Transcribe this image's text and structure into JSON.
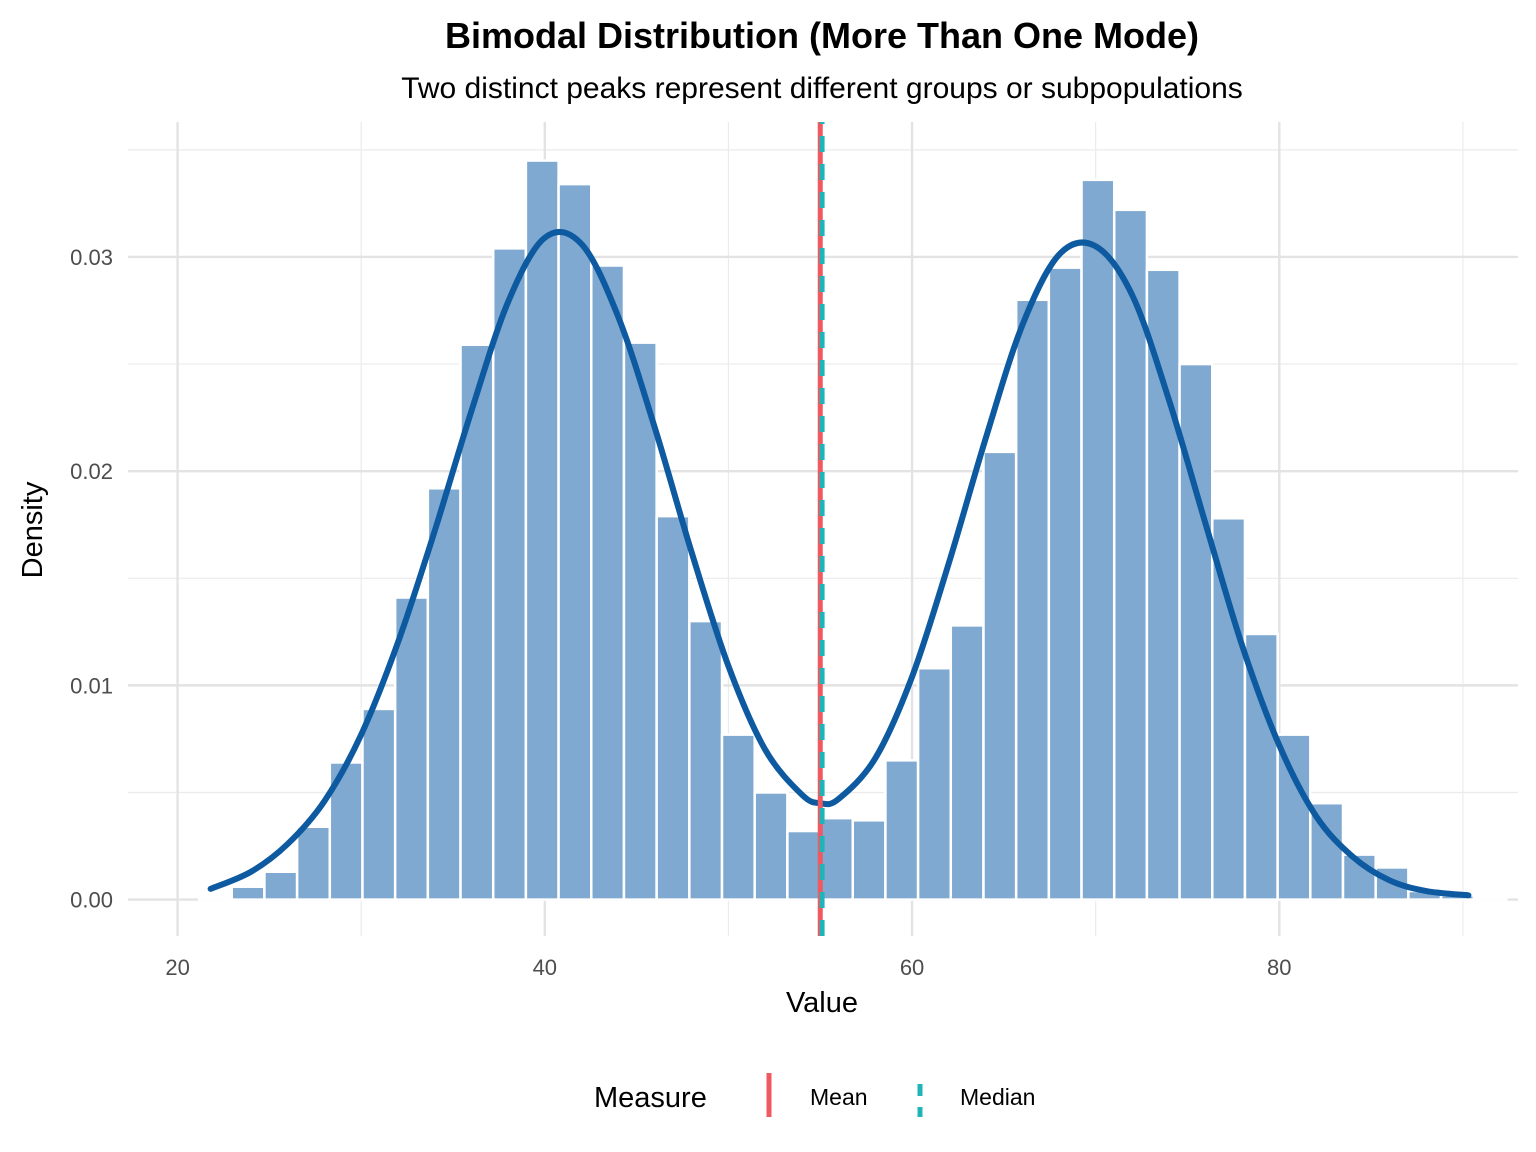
{
  "chart_data": {
    "type": "bar",
    "title": "Bimodal Distribution (More Than One Mode)",
    "subtitle": "Two distinct peaks represent different groups or subpopulations",
    "xlabel": "Value",
    "ylabel": "Density",
    "xlim": [
      17.3,
      93.0
    ],
    "ylim": [
      -0.0017,
      0.0363
    ],
    "x_ticks": [
      20,
      40,
      60,
      80
    ],
    "x_tick_labels": [
      "20",
      "40",
      "60",
      "80"
    ],
    "y_ticks": [
      0.0,
      0.01,
      0.02,
      0.03
    ],
    "y_tick_labels": [
      "0.00",
      "0.01",
      "0.02",
      "0.03"
    ],
    "grid": true,
    "bin_width": 1.78,
    "histogram": {
      "name": "Histogram",
      "color": "#7fa9d0",
      "bin_centers": [
        22.06,
        23.84,
        25.62,
        27.4,
        29.18,
        30.96,
        32.74,
        34.52,
        36.3,
        38.08,
        39.86,
        41.64,
        43.42,
        45.2,
        46.98,
        48.76,
        50.54,
        52.32,
        54.1,
        55.88,
        57.66,
        59.44,
        61.22,
        63.0,
        64.78,
        66.56,
        68.34,
        70.12,
        71.9,
        73.68,
        75.46,
        77.24,
        79.02,
        80.8,
        82.58,
        84.36,
        86.14,
        87.92,
        89.7,
        91.48
      ],
      "densities": [
        0.0001,
        0.0006,
        0.0013,
        0.0034,
        0.0064,
        0.0089,
        0.0141,
        0.0192,
        0.0259,
        0.0304,
        0.0345,
        0.0334,
        0.0296,
        0.026,
        0.0179,
        0.013,
        0.0077,
        0.005,
        0.0032,
        0.0038,
        0.0037,
        0.0065,
        0.0108,
        0.0128,
        0.0209,
        0.028,
        0.0295,
        0.0336,
        0.0322,
        0.0294,
        0.025,
        0.0178,
        0.0124,
        0.0077,
        0.0045,
        0.0021,
        0.0015,
        0.0004,
        0.0002,
        0.0001
      ]
    },
    "density_curve": {
      "name": "Density",
      "color": "#0e5aa0",
      "x": [
        21.8,
        24,
        26,
        28,
        30,
        32,
        34,
        36,
        38,
        40,
        42,
        44,
        46,
        48,
        50,
        52,
        54,
        55,
        56,
        58,
        60,
        62,
        64,
        66,
        68,
        70,
        72,
        74,
        76,
        78,
        80,
        82,
        84,
        86,
        88,
        90.3
      ],
      "y": [
        0.0005,
        0.0013,
        0.0026,
        0.0046,
        0.0077,
        0.012,
        0.0172,
        0.0228,
        0.0279,
        0.0309,
        0.0306,
        0.0272,
        0.022,
        0.0162,
        0.0109,
        0.007,
        0.0049,
        0.0045,
        0.0047,
        0.0066,
        0.0104,
        0.0157,
        0.0215,
        0.0268,
        0.0301,
        0.0305,
        0.0282,
        0.0233,
        0.0175,
        0.0118,
        0.0072,
        0.0039,
        0.002,
        0.0009,
        0.0004,
        0.0002
      ]
    },
    "vlines": [
      {
        "name": "Mean",
        "x": 55.0,
        "color": "#f0595f",
        "style": "solid"
      },
      {
        "name": "Median",
        "x": 55.1,
        "color": "#1fb5b8",
        "style": "dashed"
      }
    ],
    "legend": {
      "title": "Measure",
      "position": "bottom",
      "entries": [
        {
          "label": "Mean",
          "color": "#f0595f",
          "style": "solid"
        },
        {
          "label": "Median",
          "color": "#1fb5b8",
          "style": "dashed"
        }
      ]
    }
  }
}
